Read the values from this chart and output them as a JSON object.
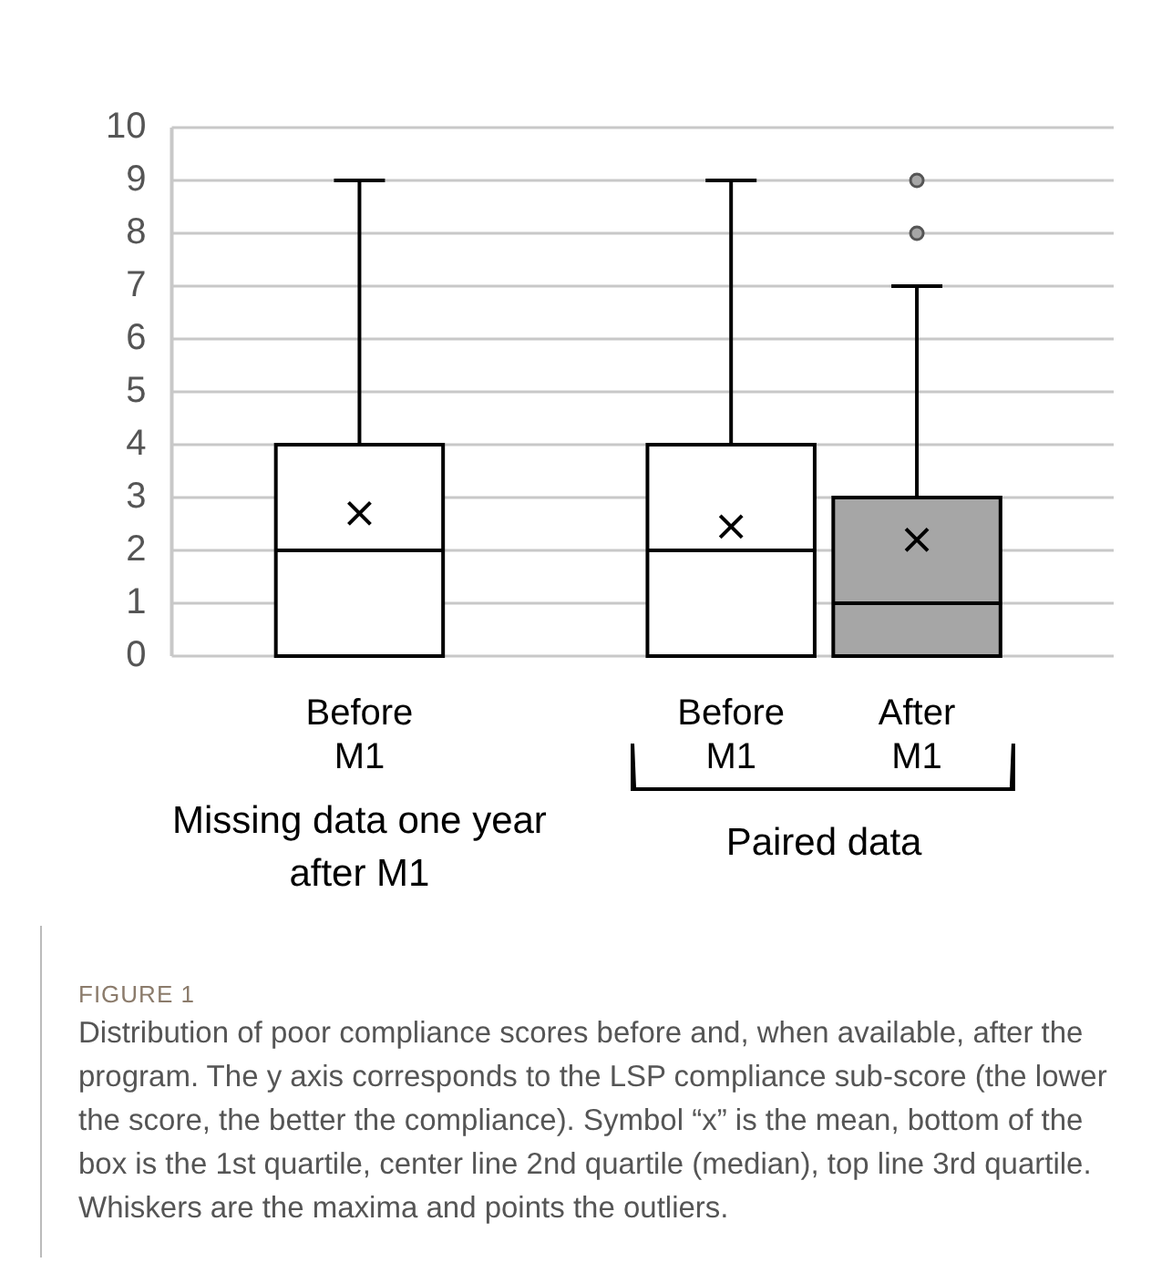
{
  "chart_data": {
    "type": "box",
    "categories": [
      "Before M1",
      null,
      "Before M1",
      "After M1"
    ],
    "series": [
      {
        "color": "#ffffff",
        "boxes": [
          {
            "low": 0,
            "q1": 0,
            "median": 2,
            "q3": 4,
            "high": 9,
            "mean": 2.7
          },
          null,
          {
            "low": 0,
            "q1": 0,
            "median": 2,
            "q3": 4,
            "high": 9,
            "mean": 2.45
          },
          null
        ]
      },
      {
        "color": "#a6a6a6",
        "boxes": [
          null,
          null,
          null,
          {
            "low": 0,
            "q1": 0,
            "median": 1,
            "q3": 3,
            "high": 7,
            "mean": 2.2,
            "outliers": [
              8,
              9
            ]
          }
        ]
      }
    ],
    "ylim": [
      0,
      10
    ],
    "yticks": [
      0,
      1,
      2,
      3,
      4,
      5,
      6,
      7,
      8,
      9,
      10
    ],
    "grid": "y",
    "legend": false,
    "marker": "cross",
    "annotations": [
      "Missing data one year after M1",
      "Paired data",
      "FIGURE 1",
      "Distribution of poor compliance scores before and, when available, after the program. The y axis corresponds to the LSP compliance sub-score (the lower the score, the better the compliance). Symbol “x” is the mean, bottom of the box is the 1st quartile, center line 2nd quartile (median), top line 3rd quartile. Whiskers are the maxima and points the outliers."
    ]
  }
}
